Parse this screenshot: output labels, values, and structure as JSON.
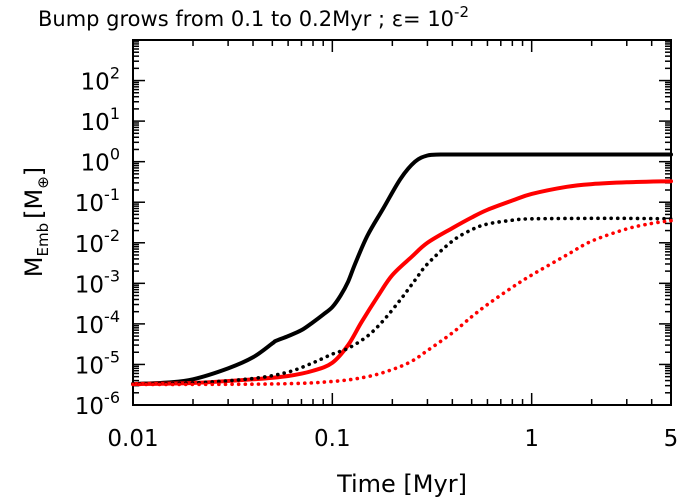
{
  "chart_data": {
    "type": "line",
    "title": "Bump grows from 0.1 to 0.2Myr ; ε= 10",
    "title_exponent": "-2",
    "xlabel": "Time [Myr]",
    "ylabel_main": "M",
    "ylabel_sub": "Emb",
    "ylabel_unit_open": "[M",
    "ylabel_unit_sub": "⊕",
    "ylabel_unit_close": "]",
    "xscale": "log",
    "yscale": "log",
    "xlim": [
      0.01,
      5
    ],
    "ylim": [
      1e-06,
      1000
    ],
    "x_ticks": [
      {
        "value": 0.01,
        "label": "0.01"
      },
      {
        "value": 0.1,
        "label": "0.1"
      },
      {
        "value": 1,
        "label": "1"
      },
      {
        "value": 5,
        "label": "5"
      }
    ],
    "y_ticks": [
      {
        "value": 1e-06,
        "base": "10",
        "exp": "-6"
      },
      {
        "value": 1e-05,
        "base": "10",
        "exp": "-5"
      },
      {
        "value": 0.0001,
        "base": "10",
        "exp": "-4"
      },
      {
        "value": 0.001,
        "base": "10",
        "exp": "-3"
      },
      {
        "value": 0.01,
        "base": "10",
        "exp": "-2"
      },
      {
        "value": 0.1,
        "base": "10",
        "exp": "-1"
      },
      {
        "value": 1,
        "base": "10",
        "exp": "0"
      },
      {
        "value": 10,
        "base": "10",
        "exp": "1"
      },
      {
        "value": 100,
        "base": "10",
        "exp": "2"
      }
    ],
    "series": [
      {
        "name": "black-solid",
        "color": "#000000",
        "style": "solid",
        "points": [
          [
            0.01,
            3.3e-06
          ],
          [
            0.015,
            3.6e-06
          ],
          [
            0.02,
            4.3e-06
          ],
          [
            0.03,
            8e-06
          ],
          [
            0.04,
            1.5e-05
          ],
          [
            0.05,
            3.3e-05
          ],
          [
            0.052,
            3.8e-05
          ],
          [
            0.06,
            5e-05
          ],
          [
            0.07,
            7e-05
          ],
          [
            0.08,
            0.00011
          ],
          [
            0.09,
            0.00017
          ],
          [
            0.1,
            0.00026
          ],
          [
            0.11,
            0.0005
          ],
          [
            0.12,
            0.0011
          ],
          [
            0.13,
            0.003
          ],
          [
            0.15,
            0.015
          ],
          [
            0.18,
            0.07
          ],
          [
            0.22,
            0.38
          ],
          [
            0.26,
            1.0
          ],
          [
            0.3,
            1.42
          ],
          [
            0.35,
            1.5
          ],
          [
            0.5,
            1.5
          ],
          [
            1,
            1.5
          ],
          [
            2,
            1.5
          ],
          [
            5,
            1.5
          ]
        ]
      },
      {
        "name": "red-solid",
        "color": "#ff0000",
        "style": "solid",
        "points": [
          [
            0.01,
            3.3e-06
          ],
          [
            0.02,
            3.5e-06
          ],
          [
            0.04,
            4.3e-06
          ],
          [
            0.06,
            5.2e-06
          ],
          [
            0.08,
            7e-06
          ],
          [
            0.1,
            1.1e-05
          ],
          [
            0.12,
            3e-05
          ],
          [
            0.14,
            0.00011
          ],
          [
            0.17,
            0.0005
          ],
          [
            0.2,
            0.0016
          ],
          [
            0.25,
            0.0045
          ],
          [
            0.3,
            0.01
          ],
          [
            0.4,
            0.023
          ],
          [
            0.5,
            0.042
          ],
          [
            0.6,
            0.065
          ],
          [
            0.8,
            0.11
          ],
          [
            1,
            0.16
          ],
          [
            1.5,
            0.24
          ],
          [
            2,
            0.28
          ],
          [
            3,
            0.31
          ],
          [
            5,
            0.33
          ]
        ]
      },
      {
        "name": "black-dotted",
        "color": "#000000",
        "style": "dotted",
        "points": [
          [
            0.01,
            3.3e-06
          ],
          [
            0.02,
            3.5e-06
          ],
          [
            0.04,
            4.5e-06
          ],
          [
            0.06,
            6.5e-06
          ],
          [
            0.08,
            1.1e-05
          ],
          [
            0.1,
            1.8e-05
          ],
          [
            0.12,
            2.5e-05
          ],
          [
            0.15,
            5e-05
          ],
          [
            0.18,
            0.00012
          ],
          [
            0.22,
            0.0004
          ],
          [
            0.26,
            0.0012
          ],
          [
            0.3,
            0.003
          ],
          [
            0.4,
            0.011
          ],
          [
            0.5,
            0.021
          ],
          [
            0.6,
            0.029
          ],
          [
            0.8,
            0.036
          ],
          [
            1,
            0.039
          ],
          [
            2,
            0.04
          ],
          [
            3,
            0.04
          ],
          [
            5,
            0.039
          ]
        ]
      },
      {
        "name": "red-dotted",
        "color": "#ff0000",
        "style": "dotted",
        "points": [
          [
            0.01,
            3.2e-06
          ],
          [
            0.05,
            3.3e-06
          ],
          [
            0.1,
            3.8e-06
          ],
          [
            0.15,
            5e-06
          ],
          [
            0.2,
            7.5e-06
          ],
          [
            0.25,
            1.2e-05
          ],
          [
            0.3,
            2.2e-05
          ],
          [
            0.4,
            6e-05
          ],
          [
            0.5,
            0.00015
          ],
          [
            0.6,
            0.0003
          ],
          [
            0.8,
            0.0008
          ],
          [
            1,
            0.0016
          ],
          [
            1.5,
            0.005
          ],
          [
            2,
            0.011
          ],
          [
            3,
            0.022
          ],
          [
            4,
            0.03
          ],
          [
            5,
            0.035
          ]
        ]
      }
    ]
  }
}
